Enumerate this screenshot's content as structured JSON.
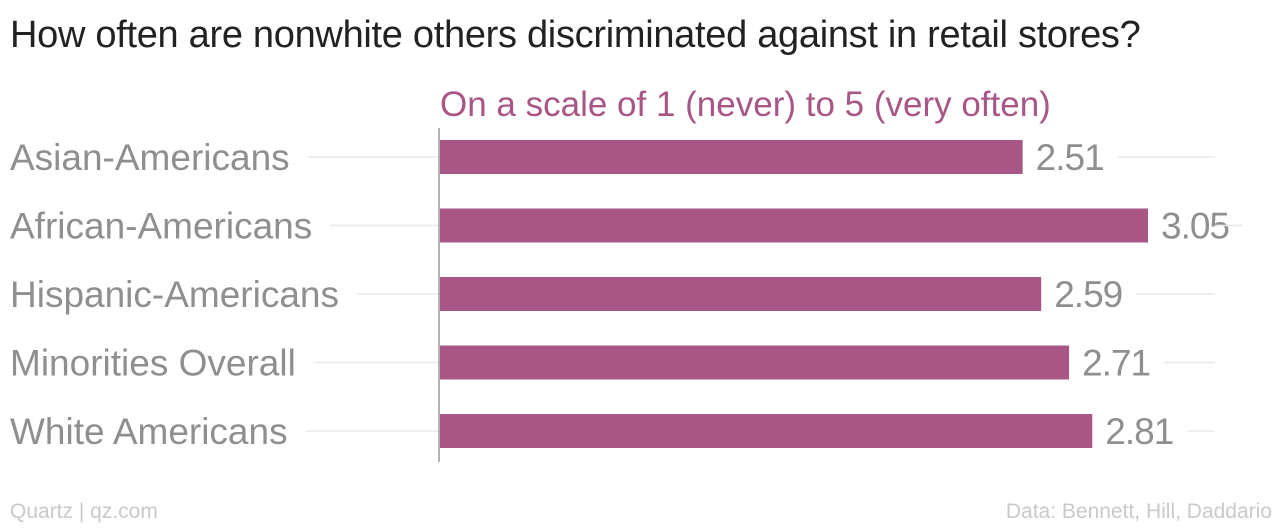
{
  "title": "How often are nonwhite others discriminated against in retail stores?",
  "footer": {
    "source_left": "Quartz | qz.com",
    "source_right": "Data: Bennett, Hill, Daddario"
  },
  "colors": {
    "bar": "#a85686",
    "subtitle": "#a85686",
    "category_label": "#8f8f8f",
    "value_label": "#8f8f8f",
    "gridline": "#e8e8e8",
    "axis": "#9a9a9a"
  },
  "chart_data": {
    "type": "bar",
    "orientation": "horizontal",
    "title": "How often are nonwhite others discriminated against in retail stores?",
    "subtitle": "On a scale of 1 (never) to 5 (very often)",
    "categories": [
      "Asian-Americans",
      "African-Americans",
      "Hispanic-Americans",
      "Minorities Overall",
      "White Americans"
    ],
    "values": [
      2.51,
      3.05,
      2.59,
      2.71,
      2.81
    ],
    "value_labels": [
      "2.51",
      "3.05",
      "2.59",
      "2.71",
      "2.81"
    ],
    "xlim": [
      0,
      3.05
    ],
    "grid": true,
    "legend": "none"
  }
}
